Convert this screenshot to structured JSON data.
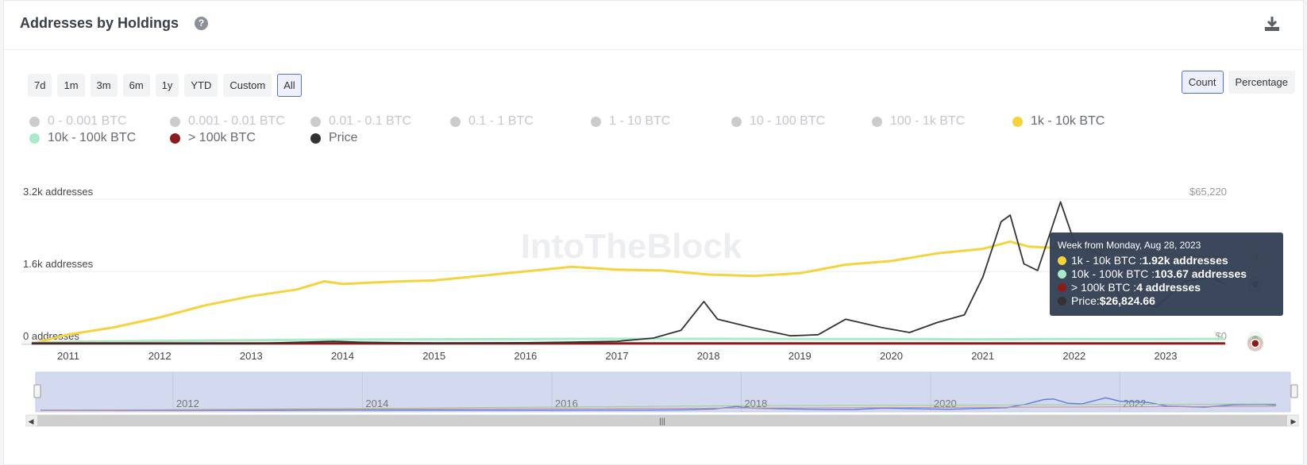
{
  "header": {
    "title": "Addresses by Holdings",
    "help_icon": "question-circle-icon",
    "download_icon": "download-icon"
  },
  "range_buttons": [
    {
      "label": "7d",
      "active": false
    },
    {
      "label": "1m",
      "active": false
    },
    {
      "label": "3m",
      "active": false
    },
    {
      "label": "6m",
      "active": false
    },
    {
      "label": "1y",
      "active": false
    },
    {
      "label": "YTD",
      "active": false
    },
    {
      "label": "Custom",
      "active": false
    },
    {
      "label": "All",
      "active": true
    }
  ],
  "mode_buttons": [
    {
      "label": "Count",
      "active": true
    },
    {
      "label": "Percentage",
      "active": false
    }
  ],
  "legend": [
    {
      "label": "0 - 0.001 BTC",
      "color": "#cccccc",
      "enabled": false
    },
    {
      "label": "0.001 - 0.01 BTC",
      "color": "#cccccc",
      "enabled": false
    },
    {
      "label": "0.01 - 0.1 BTC",
      "color": "#cccccc",
      "enabled": false
    },
    {
      "label": "0.1 - 1 BTC",
      "color": "#cccccc",
      "enabled": false
    },
    {
      "label": "1 - 10 BTC",
      "color": "#cccccc",
      "enabled": false
    },
    {
      "label": "10 - 100 BTC",
      "color": "#cccccc",
      "enabled": false
    },
    {
      "label": "100 - 1k BTC",
      "color": "#cccccc",
      "enabled": false
    },
    {
      "label": "1k - 10k BTC",
      "color": "#f5d33f",
      "enabled": true
    },
    {
      "label": "10k - 100k BTC",
      "color": "#a8ebc9",
      "enabled": true
    },
    {
      "label": "> 100k BTC",
      "color": "#8e1b1b",
      "enabled": true
    },
    {
      "label": "Price",
      "color": "#333333",
      "enabled": true
    }
  ],
  "watermark": "IntoTheBlock",
  "chart_data": {
    "type": "line",
    "x_ticks": [
      "2011",
      "2012",
      "2013",
      "2014",
      "2015",
      "2016",
      "2017",
      "2018",
      "2019",
      "2020",
      "2021",
      "2022",
      "2023"
    ],
    "y_left_ticks": [
      "0 addresses",
      "1.6k addresses",
      "3.2k addresses"
    ],
    "y_left_range": [
      0,
      3200
    ],
    "y_right_ticks": [
      "$0",
      "$65,220"
    ],
    "y_right_range": [
      0,
      65220
    ],
    "series": [
      {
        "name": "1k - 10k BTC",
        "color": "#f5d33f",
        "axis": "left",
        "points": [
          [
            2010.6,
            0
          ],
          [
            2010.8,
            100
          ],
          [
            2011.0,
            200
          ],
          [
            2011.5,
            360
          ],
          [
            2012.0,
            580
          ],
          [
            2012.5,
            850
          ],
          [
            2013.0,
            1050
          ],
          [
            2013.5,
            1200
          ],
          [
            2013.8,
            1380
          ],
          [
            2014.0,
            1320
          ],
          [
            2014.5,
            1370
          ],
          [
            2015.0,
            1400
          ],
          [
            2015.5,
            1500
          ],
          [
            2016.0,
            1600
          ],
          [
            2016.5,
            1700
          ],
          [
            2017.0,
            1640
          ],
          [
            2017.5,
            1620
          ],
          [
            2018.0,
            1530
          ],
          [
            2018.5,
            1500
          ],
          [
            2019.0,
            1560
          ],
          [
            2019.5,
            1750
          ],
          [
            2020.0,
            1830
          ],
          [
            2020.5,
            2000
          ],
          [
            2021.0,
            2100
          ],
          [
            2021.3,
            2260
          ],
          [
            2021.5,
            2150
          ],
          [
            2022.0,
            2100
          ],
          [
            2022.5,
            2050
          ],
          [
            2023.0,
            1980
          ],
          [
            2023.65,
            1920
          ]
        ]
      },
      {
        "name": "10k - 100k BTC",
        "color": "#a8ebc9",
        "axis": "left",
        "points": [
          [
            2010.6,
            20
          ],
          [
            2011.0,
            40
          ],
          [
            2012.0,
            60
          ],
          [
            2013.0,
            75
          ],
          [
            2014.0,
            90
          ],
          [
            2015.0,
            95
          ],
          [
            2016.0,
            100
          ],
          [
            2017.0,
            105
          ],
          [
            2018.0,
            105
          ],
          [
            2019.0,
            100
          ],
          [
            2020.0,
            100
          ],
          [
            2021.0,
            95
          ],
          [
            2022.0,
            100
          ],
          [
            2023.0,
            100
          ],
          [
            2023.65,
            103.67
          ]
        ]
      },
      {
        "name": "> 100k BTC",
        "color": "#8e1b1b",
        "axis": "left",
        "points": [
          [
            2010.6,
            4
          ],
          [
            2023.65,
            4
          ]
        ]
      },
      {
        "name": "Price",
        "color": "#333333",
        "axis": "right",
        "points": [
          [
            2010.6,
            0
          ],
          [
            2013.0,
            50
          ],
          [
            2013.9,
            1000
          ],
          [
            2014.2,
            600
          ],
          [
            2015.0,
            250
          ],
          [
            2016.0,
            400
          ],
          [
            2016.5,
            650
          ],
          [
            2017.0,
            1000
          ],
          [
            2017.4,
            2500
          ],
          [
            2017.7,
            6000
          ],
          [
            2017.95,
            19000
          ],
          [
            2018.1,
            11000
          ],
          [
            2018.5,
            7000
          ],
          [
            2018.9,
            3500
          ],
          [
            2019.2,
            4000
          ],
          [
            2019.5,
            11000
          ],
          [
            2019.9,
            7200
          ],
          [
            2020.2,
            5000
          ],
          [
            2020.5,
            9500
          ],
          [
            2020.8,
            13000
          ],
          [
            2021.0,
            30000
          ],
          [
            2021.2,
            55000
          ],
          [
            2021.3,
            58000
          ],
          [
            2021.45,
            36000
          ],
          [
            2021.6,
            33000
          ],
          [
            2021.85,
            64000
          ],
          [
            2022.0,
            46000
          ],
          [
            2022.3,
            40000
          ],
          [
            2022.5,
            21000
          ],
          [
            2022.9,
            16500
          ],
          [
            2023.2,
            28000
          ],
          [
            2023.5,
            30000
          ],
          [
            2023.65,
            26824.66
          ]
        ]
      }
    ],
    "navigator": {
      "x_ticks": [
        "2012",
        "2014",
        "2016",
        "2018",
        "2020",
        "2022"
      ]
    }
  },
  "tooltip": {
    "date": "Week from Monday, Aug 28, 2023",
    "rows": [
      {
        "label": "1k - 10k BTC : ",
        "value": "1.92k addresses",
        "color": "#f5d33f"
      },
      {
        "label": "10k - 100k BTC : ",
        "value": "103.67 addresses",
        "color": "#a8ebc9"
      },
      {
        "label": "> 100k BTC : ",
        "value": "4 addresses",
        "color": "#8e1b1b"
      },
      {
        "label": "Price: ",
        "value": "$26,824.66",
        "color": "#333333"
      }
    ]
  },
  "scrollbar_icon": "grip-icon"
}
